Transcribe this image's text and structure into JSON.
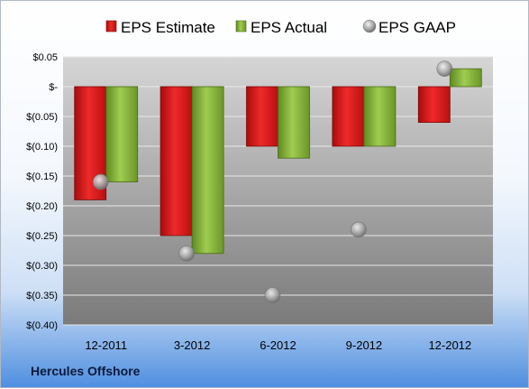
{
  "company": "Hercules Offshore",
  "chart_data": {
    "type": "bar",
    "title": "",
    "xlabel": "",
    "ylabel": "",
    "categories": [
      "12-2011",
      "3-2012",
      "6-2012",
      "9-2012",
      "12-2012"
    ],
    "series": [
      {
        "name": "EPS Estimate",
        "kind": "bar",
        "values": [
          -0.19,
          -0.25,
          -0.1,
          -0.1,
          -0.06
        ],
        "color": "#dd1e1e"
      },
      {
        "name": "EPS Actual",
        "kind": "bar",
        "values": [
          -0.16,
          -0.28,
          -0.12,
          -0.1,
          0.03
        ],
        "color": "#8cba3c"
      },
      {
        "name": "EPS GAAP",
        "kind": "scatter",
        "values": [
          -0.16,
          -0.28,
          -0.35,
          -0.24,
          0.03
        ],
        "color": "#a0a0a0"
      }
    ],
    "ylim": [
      -0.4,
      0.05
    ],
    "yticks": [
      0.05,
      0.0,
      -0.05,
      -0.1,
      -0.15,
      -0.2,
      -0.25,
      -0.3,
      -0.35,
      -0.4
    ],
    "ytick_labels": [
      "$0.05",
      "$-",
      "$(0.05)",
      "$(0.10)",
      "$(0.15)",
      "$(0.20)",
      "$(0.25)",
      "$(0.30)",
      "$(0.35)",
      "$(0.40)"
    ],
    "grid": true,
    "legend": "top"
  }
}
